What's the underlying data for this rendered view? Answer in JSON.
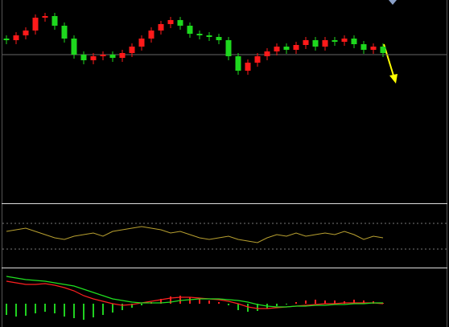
{
  "chart_data": [
    {
      "type": "candlestick",
      "open": [
        204,
        202,
        208,
        214,
        230,
        232,
        220,
        204,
        184,
        177,
        182,
        184,
        180,
        186,
        194,
        204,
        214,
        222,
        227,
        220,
        210,
        208,
        206,
        202,
        182,
        164,
        174,
        182,
        188,
        194,
        190,
        196,
        202,
        194,
        202,
        200,
        204,
        197,
        190,
        194
      ],
      "high": [
        208,
        212,
        218,
        234,
        236,
        236,
        224,
        208,
        188,
        186,
        188,
        188,
        190,
        198,
        208,
        218,
        226,
        231,
        231,
        224,
        214,
        212,
        210,
        206,
        186,
        178,
        186,
        192,
        198,
        198,
        200,
        206,
        206,
        206,
        206,
        208,
        208,
        201,
        198,
        198
      ],
      "low": [
        197,
        197,
        203,
        209,
        225,
        215,
        199,
        179,
        172,
        172,
        177,
        175,
        175,
        181,
        189,
        199,
        209,
        217,
        215,
        205,
        203,
        201,
        197,
        177,
        159,
        159,
        169,
        177,
        183,
        185,
        185,
        191,
        189,
        189,
        195,
        195,
        192,
        185,
        185,
        181
      ],
      "close": [
        202,
        208,
        214,
        230,
        232,
        220,
        204,
        184,
        177,
        182,
        184,
        180,
        186,
        194,
        204,
        214,
        222,
        227,
        220,
        210,
        208,
        206,
        202,
        182,
        164,
        174,
        182,
        188,
        194,
        190,
        196,
        202,
        194,
        202,
        200,
        204,
        197,
        190,
        194,
        186
      ],
      "up_color": "#ff1a1a",
      "down_color": "#1ed81e",
      "reference_line": 184,
      "ylim": [
        0,
        252
      ]
    },
    {
      "type": "line",
      "values": [
        44,
        46,
        48,
        44,
        40,
        36,
        34,
        38,
        40,
        42,
        38,
        44,
        46,
        48,
        50,
        48,
        46,
        42,
        44,
        40,
        36,
        34,
        36,
        38,
        34,
        32,
        30,
        36,
        40,
        38,
        42,
        38,
        40,
        42,
        40,
        44,
        40,
        34,
        38,
        36
      ],
      "color": "#b8a030",
      "levels": [
        54,
        22
      ],
      "ylim": [
        0,
        77
      ]
    },
    {
      "type": "macd",
      "histogram": [
        -14,
        -16,
        -15,
        -12,
        -10,
        -12,
        -16,
        -18,
        -20,
        -17,
        -14,
        -11,
        -8,
        -5,
        -2,
        2,
        6,
        9,
        10,
        8,
        6,
        4,
        2,
        -2,
        -8,
        -10,
        -9,
        -6,
        -3,
        -1,
        2,
        4,
        5,
        4,
        4,
        3,
        5,
        4,
        3,
        1
      ],
      "pos_color": "#ff2020",
      "neg_color": "#20d020",
      "series": [
        {
          "color": "#ff2020",
          "values": [
            28,
            26,
            24,
            24,
            25,
            23,
            20,
            16,
            10,
            6,
            3,
            0,
            -2,
            -1,
            1,
            3,
            5,
            7,
            8,
            8,
            7,
            6,
            5,
            3,
            0,
            -4,
            -6,
            -6,
            -5,
            -4,
            -3,
            -2,
            -1,
            0,
            0,
            1,
            1,
            1,
            1,
            0
          ]
        },
        {
          "color": "#20e020",
          "values": [
            34,
            32,
            30,
            29,
            28,
            26,
            24,
            22,
            18,
            14,
            10,
            6,
            4,
            2,
            1,
            1,
            1,
            2,
            4,
            5,
            6,
            6,
            6,
            5,
            4,
            2,
            -1,
            -3,
            -4,
            -4,
            -3,
            -3,
            -2,
            -2,
            -1,
            -1,
            0,
            0,
            1,
            1
          ]
        }
      ],
      "ylim": [
        -29,
        43
      ]
    }
  ]
}
